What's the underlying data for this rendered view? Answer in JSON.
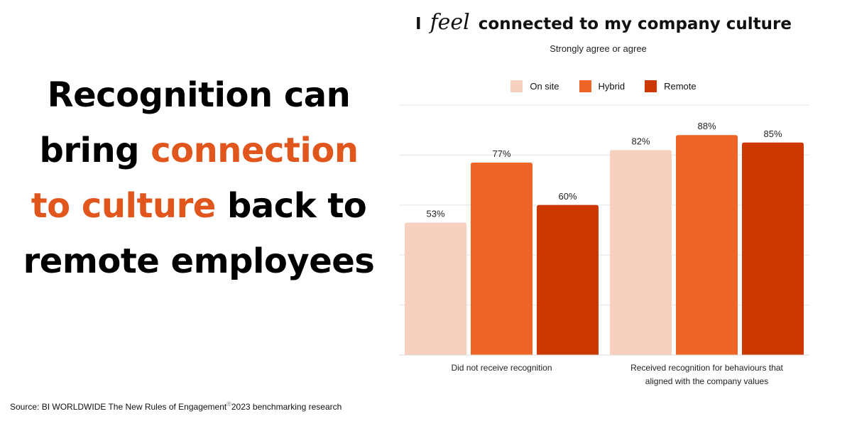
{
  "headline": {
    "part1": "Recognition can bring ",
    "accent": "connection to culture",
    "part2": " back to remote employees"
  },
  "chart_title": {
    "before": "I ",
    "script": "feel",
    "after": " connected to my company culture"
  },
  "chart_subtitle": "Strongly agree or agree",
  "source": {
    "prefix": "Source:  BI WORLDWIDE The New Rules of Engagement",
    "mark": "®",
    "suffix": "2023 benchmarking research"
  },
  "colors": {
    "accent": "#e0561d",
    "on_site": "#f8d0bf",
    "hybrid": "#ef6526",
    "remote": "#cb3800",
    "grid": "#e6e6e6"
  },
  "chart_data": {
    "type": "bar",
    "title": "I feel connected to my company culture",
    "subtitle": "Strongly agree or agree",
    "categories": [
      [
        "Did not receive recognition"
      ],
      [
        "Received recognition for behaviours that",
        "aligned with the company values"
      ]
    ],
    "series": [
      {
        "name": "On site",
        "values": [
          53,
          82
        ],
        "labels": [
          "53%",
          "82%"
        ],
        "color": "#f8d0bf"
      },
      {
        "name": "Hybrid",
        "values": [
          77,
          88
        ],
        "labels": [
          "77%",
          "88%"
        ],
        "color": "#ef6526"
      },
      {
        "name": "Remote",
        "values": [
          60,
          85
        ],
        "labels": [
          "60%",
          "85%"
        ],
        "color": "#cb3800"
      }
    ],
    "ylim": [
      0,
      100
    ],
    "grid": true,
    "legend": "top",
    "xlabel": "",
    "ylabel": ""
  }
}
